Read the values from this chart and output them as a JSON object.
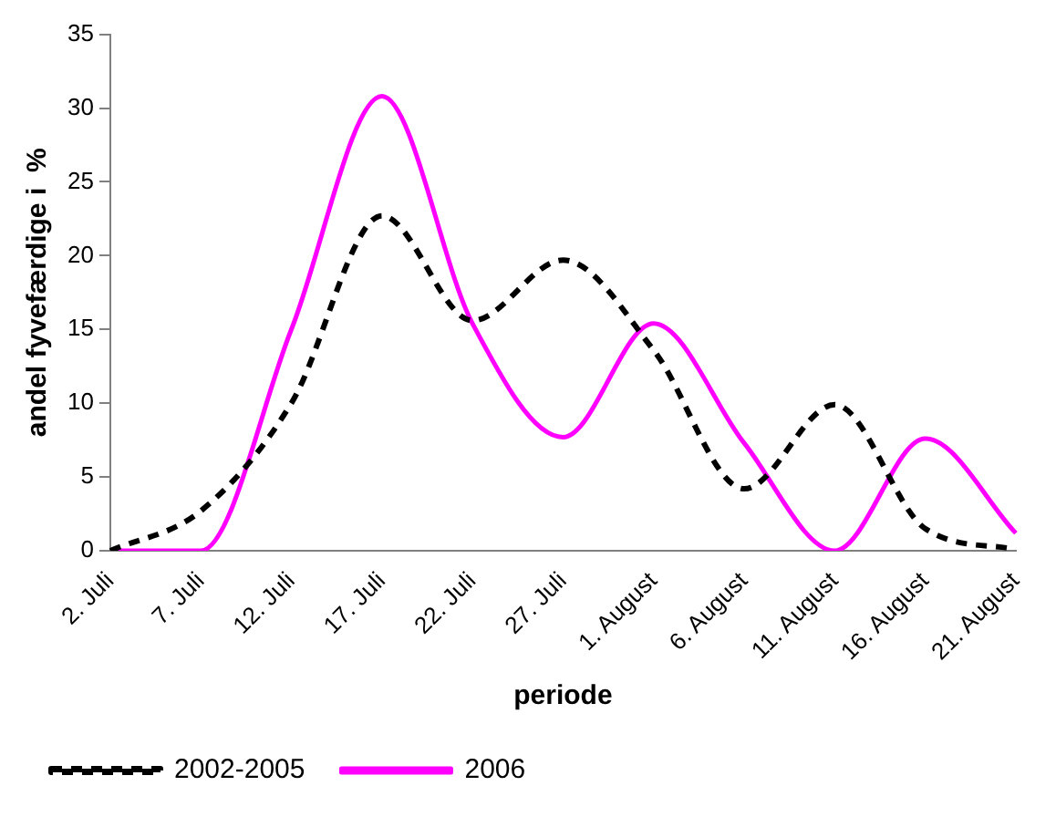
{
  "chart_data": {
    "type": "line",
    "xlabel": "periode",
    "ylabel": "andel fyvefærdige i  %",
    "categories": [
      "2. Juli",
      "7. Juli",
      "12. Juli",
      "17. Juli",
      "22. Juli",
      "27. Juli",
      "1. August",
      "6. August",
      "11. August",
      "16. August",
      "21. August"
    ],
    "series": [
      {
        "name": "2002-2005",
        "color": "#000000",
        "line_style": "dashed",
        "values": [
          0,
          2.7,
          10,
          22.7,
          15.6,
          19.7,
          13.6,
          4.2,
          9.9,
          1.5,
          0.1
        ]
      },
      {
        "name": "2006",
        "color": "#ff00ff",
        "line_style": "solid",
        "values": [
          0,
          0,
          15,
          30.8,
          15.4,
          7.7,
          15.4,
          7.3,
          0,
          7.6,
          1.2
        ]
      }
    ],
    "ylim": [
      0,
      35
    ],
    "yticks": [
      0,
      5,
      10,
      15,
      20,
      25,
      30,
      35
    ],
    "grid": false,
    "legend": "bottom",
    "marker": "none"
  }
}
